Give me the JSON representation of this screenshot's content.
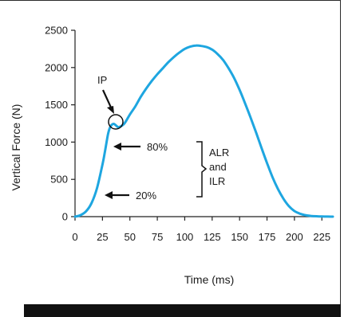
{
  "chart_data": {
    "type": "line",
    "title": "",
    "xlabel": "Time (ms)",
    "ylabel": "Vertical Force (N)",
    "xlim": [
      0,
      235
    ],
    "ylim": [
      0,
      2500
    ],
    "x_ticks": [
      "0",
      "25",
      "50",
      "75",
      "100",
      "125",
      "150",
      "175",
      "200",
      "225"
    ],
    "y_ticks": [
      "0",
      "500",
      "1000",
      "1500",
      "2000",
      "2500"
    ],
    "grid": false,
    "line_color": "#1ea6e0",
    "series": [
      {
        "x": [
          0,
          5,
          10,
          15,
          20,
          25,
          27,
          30,
          32,
          35,
          38,
          40,
          45,
          50,
          55,
          60,
          65,
          70,
          75,
          80,
          85,
          90,
          95,
          100,
          105,
          110,
          115,
          120,
          125,
          130,
          135,
          140,
          145,
          150,
          155,
          160,
          165,
          170,
          175,
          180,
          185,
          190,
          195,
          200,
          205,
          210,
          215,
          220,
          225,
          230,
          235
        ],
        "y": [
          0,
          20,
          70,
          180,
          380,
          700,
          850,
          1100,
          1200,
          1245,
          1215,
          1200,
          1250,
          1370,
          1480,
          1610,
          1720,
          1820,
          1910,
          1990,
          2070,
          2140,
          2200,
          2250,
          2280,
          2295,
          2290,
          2275,
          2240,
          2180,
          2100,
          1990,
          1860,
          1700,
          1520,
          1330,
          1130,
          920,
          720,
          530,
          370,
          240,
          140,
          75,
          40,
          20,
          10,
          5,
          2,
          1,
          0
        ]
      }
    ],
    "annotations": {
      "ip": "IP",
      "p80": "80%",
      "p20": "20%",
      "alr_lines": [
        "ALR",
        "and",
        "ILR"
      ]
    }
  }
}
